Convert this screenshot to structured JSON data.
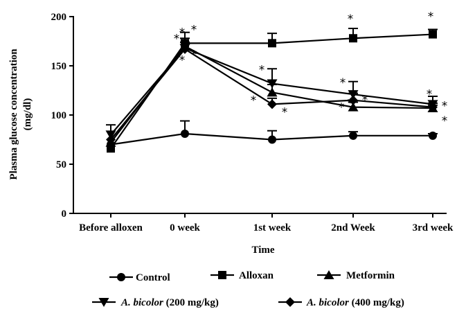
{
  "chart_data": {
    "type": "line",
    "xlabel": "Time",
    "ylabel_line1": "Plasma glucose concentration",
    "ylabel_line2": "(mg/dl)",
    "ylim": [
      0,
      200
    ],
    "yticks": [
      0,
      50,
      100,
      150,
      200
    ],
    "categories": [
      "Before alloxen",
      "0 week",
      "1st week",
      "2nd Week",
      "3rd week"
    ],
    "grid": false,
    "legend_position": "bottom",
    "significance_marker": "*",
    "series": [
      {
        "name": "Control",
        "marker": "circle",
        "values": [
          70,
          81,
          75,
          79,
          79
        ],
        "errors": [
          0,
          13,
          9,
          4,
          2
        ]
      },
      {
        "name": "Alloxan",
        "marker": "square",
        "values": [
          66,
          173,
          173,
          178,
          182
        ],
        "errors": [
          0,
          11,
          10,
          10,
          5
        ]
      },
      {
        "name": "Metformin",
        "marker": "triangle-up",
        "values": [
          72,
          170,
          123,
          108,
          107
        ],
        "errors": [
          0,
          8,
          8,
          5,
          3
        ]
      },
      {
        "name_prefix": "A. bicolor",
        "name_suffix": " (200 mg/kg)",
        "marker": "triangle-down",
        "values": [
          80,
          168,
          132,
          121,
          111
        ],
        "errors": [
          10,
          6,
          15,
          13,
          8
        ]
      },
      {
        "name_prefix": "A. bicolor",
        "name_suffix": " (400 mg/kg)",
        "marker": "diamond",
        "values": [
          75,
          167,
          111,
          115,
          108
        ],
        "errors": [
          0,
          7,
          6,
          7,
          4
        ]
      }
    ]
  }
}
